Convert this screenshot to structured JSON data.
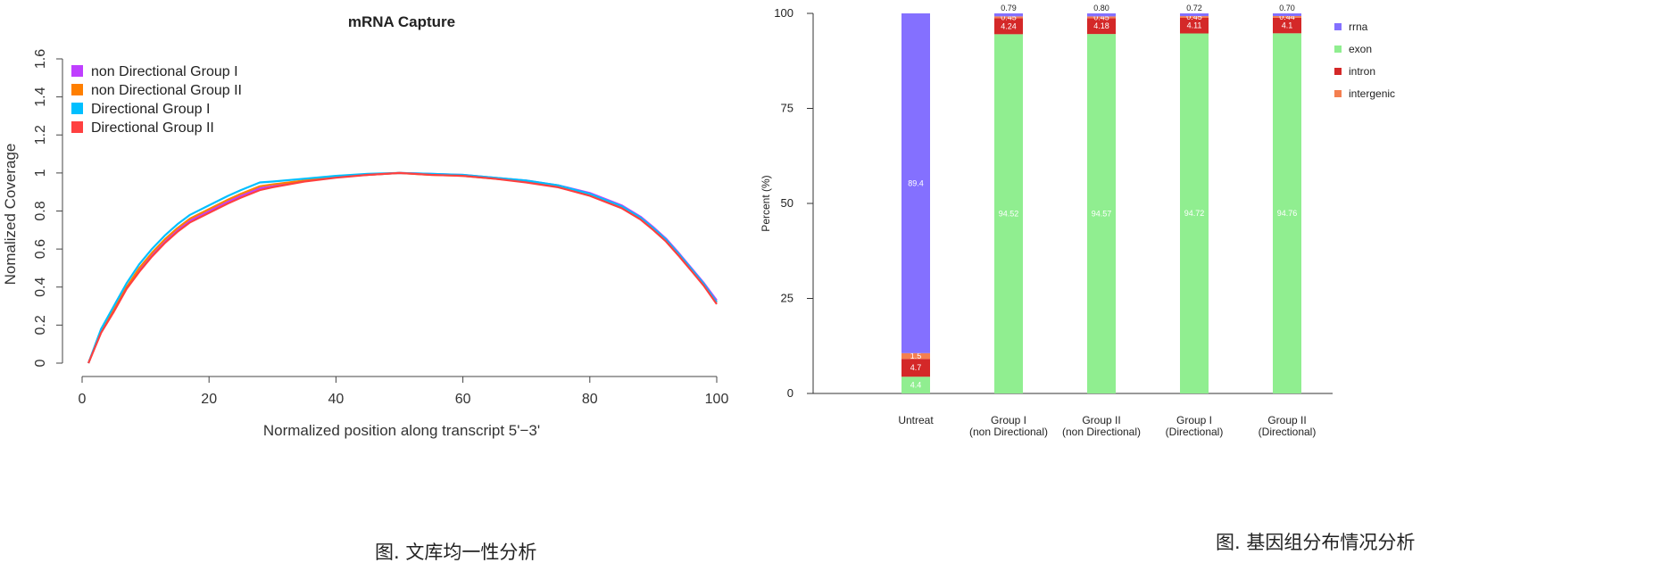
{
  "chart_data": [
    {
      "type": "line",
      "title": "mRNA Capture",
      "xlabel": "Normalized position along transcript 5'−3'",
      "ylabel": "Nomalized Coverage",
      "xlim": [
        0,
        100
      ],
      "ylim": [
        0,
        1.6
      ],
      "x_ticks": [
        "0",
        "20",
        "40",
        "60",
        "80",
        "100"
      ],
      "y_ticks": [
        "0",
        "0.2",
        "0.4",
        "0.6",
        "0.8",
        "1",
        "1.2",
        "1.4",
        "1.6"
      ],
      "legend_position": "top-left",
      "caption": "图. 文库均一性分析",
      "x": [
        1,
        3,
        5,
        7,
        9,
        11,
        13,
        15,
        17,
        20,
        23,
        25,
        28,
        30,
        35,
        40,
        45,
        50,
        55,
        60,
        65,
        70,
        75,
        80,
        85,
        88,
        90,
        92,
        94,
        96,
        98,
        100
      ],
      "series": [
        {
          "name": "non Directional Group I",
          "color": "#bf3fff",
          "values": [
            0.0,
            0.17,
            0.28,
            0.4,
            0.49,
            0.57,
            0.64,
            0.7,
            0.75,
            0.8,
            0.85,
            0.88,
            0.92,
            0.93,
            0.96,
            0.98,
            0.99,
            1.0,
            0.995,
            0.99,
            0.975,
            0.96,
            0.935,
            0.895,
            0.83,
            0.77,
            0.715,
            0.655,
            0.58,
            0.5,
            0.42,
            0.33
          ]
        },
        {
          "name": "non Directional Group II",
          "color": "#ff7f00",
          "values": [
            0.0,
            0.17,
            0.28,
            0.4,
            0.5,
            0.58,
            0.65,
            0.71,
            0.76,
            0.81,
            0.86,
            0.89,
            0.93,
            0.94,
            0.96,
            0.98,
            0.99,
            1.0,
            0.99,
            0.985,
            0.97,
            0.955,
            0.93,
            0.885,
            0.82,
            0.76,
            0.705,
            0.645,
            0.57,
            0.49,
            0.41,
            0.32
          ]
        },
        {
          "name": "Directional Group I",
          "color": "#00bfff",
          "values": [
            0.0,
            0.18,
            0.3,
            0.42,
            0.52,
            0.6,
            0.67,
            0.73,
            0.78,
            0.83,
            0.88,
            0.91,
            0.95,
            0.955,
            0.97,
            0.985,
            0.995,
            1.0,
            0.995,
            0.99,
            0.975,
            0.96,
            0.935,
            0.89,
            0.825,
            0.765,
            0.71,
            0.65,
            0.575,
            0.495,
            0.415,
            0.32
          ]
        },
        {
          "name": "Directional Group II",
          "color": "#ff4040",
          "values": [
            0.0,
            0.16,
            0.27,
            0.39,
            0.48,
            0.56,
            0.63,
            0.69,
            0.74,
            0.79,
            0.84,
            0.87,
            0.91,
            0.925,
            0.955,
            0.975,
            0.99,
            1.0,
            0.99,
            0.985,
            0.97,
            0.95,
            0.925,
            0.88,
            0.815,
            0.755,
            0.7,
            0.64,
            0.565,
            0.485,
            0.405,
            0.31
          ]
        }
      ]
    },
    {
      "type": "bar",
      "stacked": true,
      "ylabel": "Percent (%)",
      "ylim": [
        0,
        100
      ],
      "y_ticks": [
        "0",
        "25",
        "50",
        "75",
        "100"
      ],
      "legend_position": "right",
      "caption": "图. 基因组分布情况分析",
      "categories": [
        [
          "Untreat"
        ],
        [
          "Group I",
          "(non Directional)"
        ],
        [
          "Group II",
          "(non Directional)"
        ],
        [
          "Group I",
          "(Directional)"
        ],
        [
          "Group II",
          "(Directional)"
        ]
      ],
      "series": [
        {
          "name": "exon",
          "color": "#90ee90",
          "text_color": "#ffffff",
          "values": [
            4.4,
            94.52,
            94.57,
            94.72,
            94.76
          ],
          "labels": [
            "4.4",
            "94.52",
            "94.57",
            "94.72",
            "94.76"
          ]
        },
        {
          "name": "intron",
          "color": "#d42828",
          "text_color": "#ffffff",
          "values": [
            4.7,
            4.24,
            4.18,
            4.11,
            4.1
          ],
          "labels": [
            "4.7",
            "4.24",
            "4.18",
            "4.11",
            "4.1"
          ]
        },
        {
          "name": "intergenic",
          "color": "#f47f50",
          "text_color": "#ffffff",
          "values": [
            1.5,
            0.45,
            0.45,
            0.45,
            0.44
          ],
          "labels": [
            "1.5",
            "0.45",
            "0.45",
            "0.45",
            "0.44"
          ]
        },
        {
          "name": "rrna",
          "color": "#8470ff",
          "text_color": "#ffffff",
          "values": [
            89.4,
            0.79,
            0.8,
            0.72,
            0.7
          ],
          "labels": [
            "89.4",
            "0.79",
            "0.80",
            "0.72",
            "0.70"
          ]
        }
      ],
      "legend_order": [
        "rrna",
        "exon",
        "intron",
        "intergenic"
      ]
    }
  ]
}
